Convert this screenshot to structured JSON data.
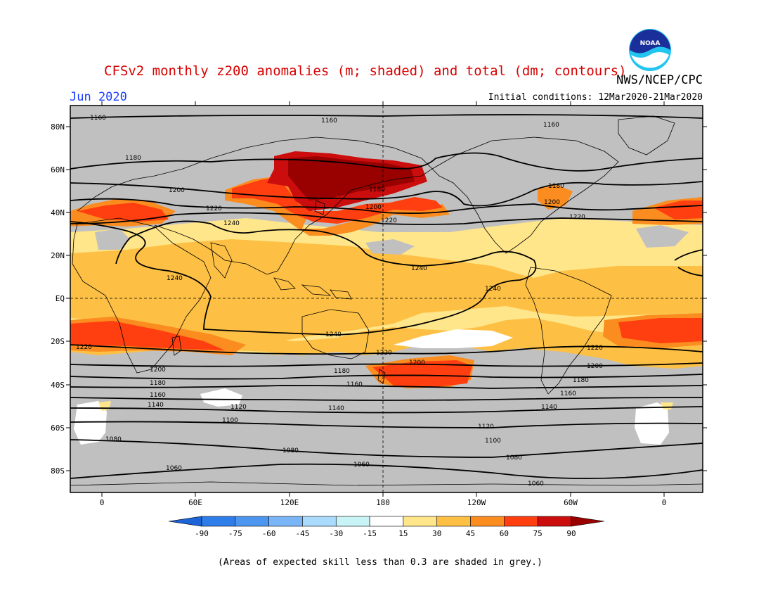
{
  "header": {
    "title": "CFSv2 monthly z200 anomalies (m; shaded) and total (dm; contours)",
    "agency": "NWS/NCEP/CPC",
    "month": "Jun 2020",
    "initial_conditions": "Initial conditions: 12Mar2020-21Mar2020"
  },
  "logo": {
    "icon": "noaa-logo-icon",
    "text": "NOAA"
  },
  "axes": {
    "lat_labels": [
      "80N",
      "60N",
      "40N",
      "20N",
      "EQ",
      "20S",
      "40S",
      "60S",
      "80S"
    ],
    "lon_labels": [
      "0",
      "60E",
      "120E",
      "180",
      "120W",
      "60W",
      "0"
    ]
  },
  "contour_labels": {
    "c1160": "1160",
    "c1180": "1180",
    "c1200": "1200",
    "c1220": "1220",
    "c1240": "1240",
    "c1140": "1140",
    "c1120": "1120",
    "c1100": "1100",
    "c1080": "1080",
    "c1060": "1060"
  },
  "colorbar": {
    "labels": [
      "-90",
      "-75",
      "-60",
      "-45",
      "-30",
      "-15",
      "15",
      "30",
      "45",
      "60",
      "75",
      "90"
    ],
    "colors": [
      "#1c64d8",
      "#2e7de8",
      "#4d96f0",
      "#7ab6f7",
      "#aadafc",
      "#c8f4f8",
      "#ffffff",
      "#ffe68a",
      "#fdc044",
      "#fb8c1f",
      "#ff3f10",
      "#cc0d0d",
      "#990000"
    ]
  },
  "footnote": "(Areas of expected skill less than 0.3 are shaded in grey.)"
}
